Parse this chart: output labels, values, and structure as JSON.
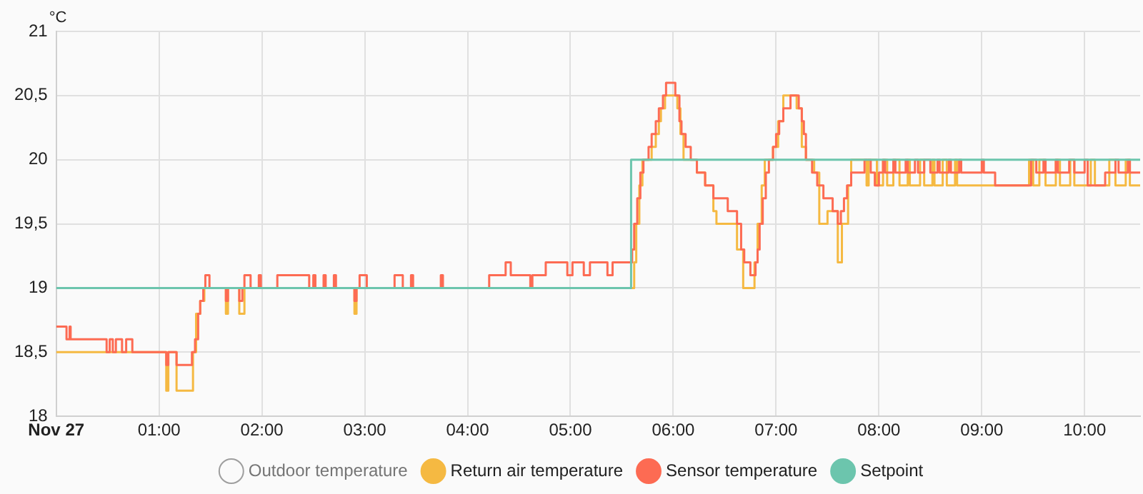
{
  "chart_data": {
    "type": "step",
    "ylabel": "°C",
    "xlim": [
      0,
      10.54
    ],
    "xticks": [
      {
        "value": 0,
        "label": "Nov 27"
      },
      {
        "value": 1,
        "label": "01:00"
      },
      {
        "value": 2,
        "label": "02:00"
      },
      {
        "value": 3,
        "label": "03:00"
      },
      {
        "value": 4,
        "label": "04:00"
      },
      {
        "value": 5,
        "label": "05:00"
      },
      {
        "value": 6,
        "label": "06:00"
      },
      {
        "value": 7,
        "label": "07:00"
      },
      {
        "value": 8,
        "label": "08:00"
      },
      {
        "value": 9,
        "label": "09:00"
      },
      {
        "value": 10,
        "label": "10:00"
      }
    ],
    "ylim": [
      18,
      21
    ],
    "yticks": [
      18,
      {
        "value": 18.5,
        "label": "18,5"
      },
      19,
      {
        "value": 19.5,
        "label": "19,5"
      },
      20,
      {
        "value": 20.5,
        "label": "20,5"
      },
      21
    ],
    "grid": true,
    "legend": "bottom",
    "marker": "none",
    "line_style": "solid",
    "series": [
      {
        "name": "Outdoor temperature",
        "color": "#9e9e9e"
      },
      {
        "name": "Return air temperature",
        "color": "#f5b942",
        "x": [
          0,
          1.07,
          1.09,
          1.17,
          1.33,
          1.36,
          1.4,
          1.44,
          1.65,
          1.67,
          1.78,
          1.83,
          2.9,
          2.92,
          5.62,
          5.64,
          5.67,
          5.7,
          5.79,
          5.83,
          5.86,
          5.88,
          5.92,
          6.04,
          6.07,
          6.1,
          6.23,
          6.31,
          6.39,
          6.42,
          6.62,
          6.68,
          6.79,
          6.82,
          6.86,
          6.89,
          6.97,
          7.02,
          7.07,
          7.2,
          7.25,
          7.29,
          7.37,
          7.42,
          7.5,
          7.6,
          7.64,
          7.7,
          7.73,
          7.88,
          7.9,
          7.98,
          8.04,
          8.08,
          8.14,
          8.2,
          8.28,
          8.3,
          8.4,
          8.44,
          8.52,
          8.54,
          8.62,
          8.66,
          8.74,
          8.76,
          9.46,
          9.5,
          9.56,
          9.62,
          9.72,
          9.76,
          9.86,
          9.9,
          10.06,
          10.1,
          10.24,
          10.3,
          10.4,
          10.44,
          10.54
        ],
        "values": [
          18.5,
          18.2,
          18.5,
          18.2,
          18.5,
          18.8,
          18.9,
          19,
          18.8,
          19,
          18.8,
          19,
          18.8,
          19,
          19.2,
          19.5,
          19.8,
          20,
          20.1,
          20.2,
          20.3,
          20.4,
          20.5,
          20.4,
          20.2,
          20,
          19.9,
          19.8,
          19.6,
          19.5,
          19.3,
          19,
          19.2,
          19.5,
          19.8,
          20,
          20.1,
          20.3,
          20.5,
          20.4,
          20.1,
          20,
          19.9,
          19.5,
          19.6,
          19.2,
          19.5,
          19.8,
          20,
          19.8,
          20,
          19.8,
          20,
          19.8,
          20,
          19.8,
          20,
          19.8,
          20,
          19.8,
          20,
          19.8,
          20,
          19.8,
          20,
          19.8,
          20,
          19.8,
          20,
          19.8,
          20,
          19.8,
          20,
          19.8,
          20,
          19.8,
          20,
          19.8,
          20,
          19.8,
          19.8
        ]
      },
      {
        "name": "Sensor temperature",
        "color": "#fd6b53",
        "x": [
          0,
          0.1,
          0.13,
          0.14,
          0.49,
          0.52,
          0.55,
          0.58,
          0.64,
          0.68,
          0.74,
          1.07,
          1.09,
          1.17,
          1.32,
          1.35,
          1.38,
          1.4,
          1.43,
          1.45,
          1.49,
          1.65,
          1.67,
          1.78,
          1.81,
          1.83,
          1.89,
          1.97,
          1.99,
          2.15,
          2.46,
          2.5,
          2.52,
          2.6,
          2.62,
          2.7,
          2.72,
          2.9,
          2.92,
          2.95,
          3.02,
          3.29,
          3.37,
          3.45,
          3.47,
          3.74,
          3.76,
          4.21,
          4.37,
          4.42,
          4.61,
          4.63,
          4.76,
          4.97,
          5.02,
          5.13,
          5.19,
          5.36,
          5.41,
          5.6,
          5.62,
          5.65,
          5.68,
          5.71,
          5.76,
          5.79,
          5.83,
          5.86,
          5.9,
          5.93,
          6.02,
          6.06,
          6.08,
          6.12,
          6.17,
          6.23,
          6.31,
          6.39,
          6.53,
          6.62,
          6.66,
          6.69,
          6.75,
          6.8,
          6.82,
          6.84,
          6.87,
          6.9,
          6.93,
          6.97,
          7,
          7.03,
          7.07,
          7.14,
          7.22,
          7.25,
          7.27,
          7.29,
          7.35,
          7.4,
          7.46,
          7.55,
          7.6,
          7.63,
          7.66,
          7.69,
          7.73,
          7.86,
          7.92,
          7.96,
          8,
          8.04,
          8.06,
          8.14,
          8.16,
          8.26,
          8.28,
          8.35,
          8.38,
          8.44,
          8.5,
          8.57,
          8.59,
          8.68,
          8.7,
          8.78,
          8.8,
          9,
          9.02,
          9.13,
          9.48,
          9.53,
          9.6,
          9.62,
          9.72,
          9.74,
          9.85,
          9.9,
          10,
          10.03,
          10.2,
          10.3,
          10.33,
          10.42,
          10.44,
          10.54
        ],
        "values": [
          18.7,
          18.6,
          18.7,
          18.6,
          18.5,
          18.6,
          18.5,
          18.6,
          18.5,
          18.6,
          18.5,
          18.4,
          18.5,
          18.4,
          18.5,
          18.6,
          18.8,
          18.9,
          19,
          19.1,
          19,
          18.9,
          19,
          18.9,
          19,
          19.1,
          19,
          19.1,
          19,
          19.1,
          19,
          19.1,
          19,
          19.1,
          19,
          19.1,
          19,
          18.9,
          19,
          19.1,
          19,
          19.1,
          19,
          19.1,
          19,
          19.1,
          19,
          19.1,
          19.2,
          19.1,
          19,
          19.1,
          19.2,
          19.1,
          19.2,
          19.1,
          19.2,
          19.1,
          19.2,
          19.3,
          19.5,
          19.7,
          19.9,
          20,
          20.1,
          20.2,
          20.3,
          20.4,
          20.5,
          20.6,
          20.5,
          20.3,
          20.2,
          20.1,
          20,
          19.9,
          19.8,
          19.7,
          19.6,
          19.5,
          19.3,
          19.2,
          19.1,
          19.2,
          19.3,
          19.5,
          19.7,
          19.9,
          20,
          20.1,
          20.2,
          20.3,
          20.4,
          20.5,
          20.4,
          20.3,
          20.2,
          20,
          19.9,
          19.8,
          19.7,
          19.6,
          19.5,
          19.6,
          19.7,
          19.8,
          19.9,
          20,
          19.9,
          19.8,
          19.9,
          20,
          19.9,
          20,
          19.9,
          20,
          19.9,
          20,
          19.9,
          20,
          19.9,
          20,
          19.9,
          20,
          19.9,
          20,
          19.9,
          20,
          19.9,
          19.8,
          20,
          19.9,
          20,
          19.9,
          20,
          19.9,
          20,
          19.9,
          20,
          19.8,
          19.9,
          20,
          19.9,
          20,
          19.9,
          19.9
        ]
      },
      {
        "name": "Setpoint",
        "color": "#6cc5ad",
        "x": [
          0,
          5.59,
          10.54
        ],
        "values": [
          19,
          20,
          20
        ]
      }
    ]
  }
}
